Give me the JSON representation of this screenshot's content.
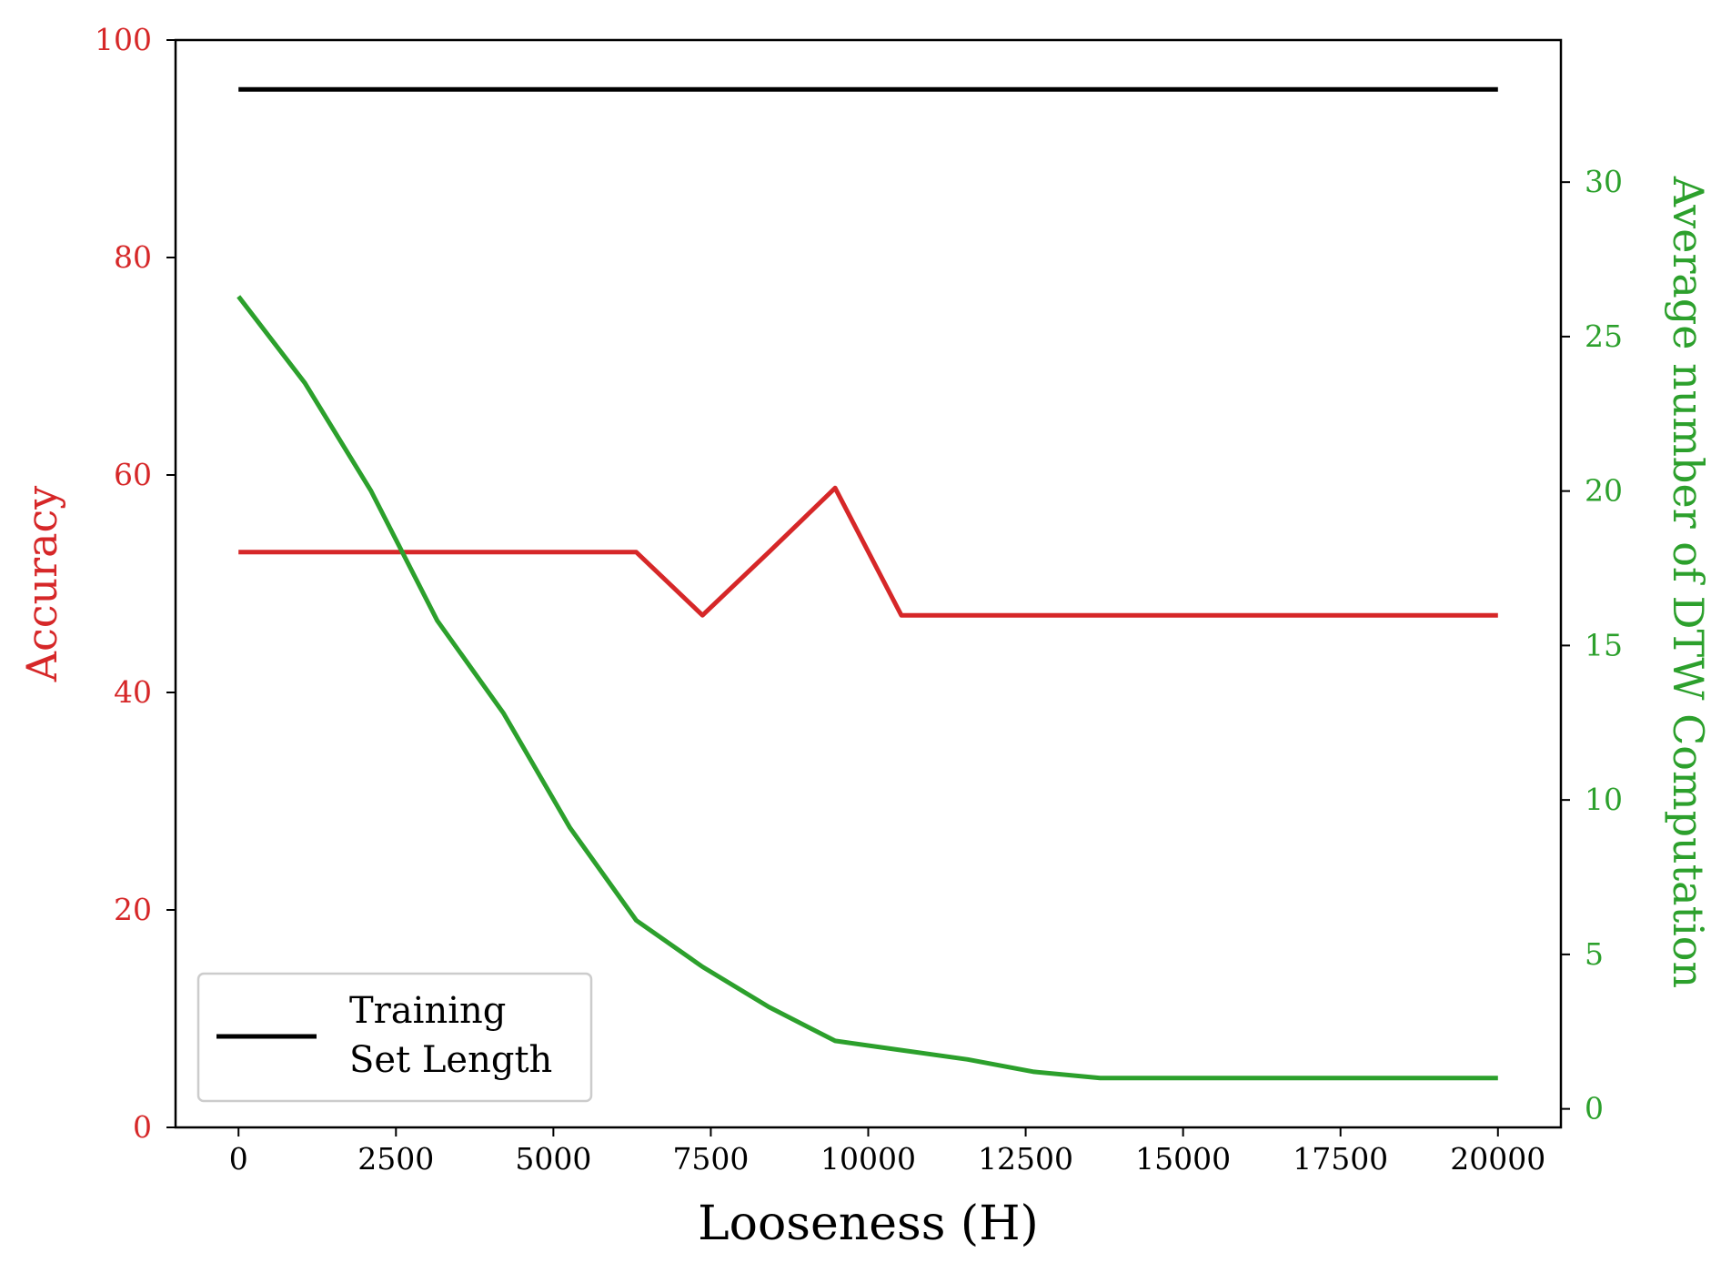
{
  "chart_data": {
    "type": "line",
    "xlabel": "Looseness (H)",
    "x_ticks": [
      "0",
      "2500",
      "5000",
      "7500",
      "10000",
      "12500",
      "15000",
      "17500",
      "20000"
    ],
    "xlim": [
      -1000,
      21000
    ],
    "left_axis": {
      "label": "Accuracy",
      "color": "#d62728",
      "ylim": [
        0,
        100
      ],
      "ticks": [
        "0",
        "20",
        "40",
        "60",
        "80",
        "100"
      ]
    },
    "right_axis": {
      "label": "Average number of DTW Computation",
      "color": "#2ca02c",
      "ylim": [
        -0.6,
        34.6
      ],
      "ticks": [
        "0",
        "5",
        "10",
        "15",
        "20",
        "25",
        "30"
      ]
    },
    "series": [
      {
        "name": "Training Set Length",
        "axis": "right",
        "color": "#000000",
        "x": [
          0,
          20000
        ],
        "y": [
          33,
          33
        ]
      },
      {
        "axis": "left",
        "color": "#d62728",
        "x": [
          0,
          1053,
          2105,
          3158,
          4211,
          5263,
          6316,
          7368,
          8421,
          9474,
          10526,
          11579,
          12632,
          13684,
          14737,
          15789,
          16842,
          17895,
          18947,
          20000
        ],
        "y": [
          52.9,
          52.9,
          52.9,
          52.9,
          52.9,
          52.9,
          52.9,
          47.1,
          52.9,
          58.8,
          47.1,
          47.1,
          47.1,
          47.1,
          47.1,
          47.1,
          47.1,
          47.1,
          47.1,
          47.1
        ]
      },
      {
        "axis": "right",
        "color": "#2ca02c",
        "x": [
          0,
          1053,
          2105,
          3158,
          4211,
          5263,
          6316,
          7368,
          8421,
          9474,
          10526,
          11579,
          12632,
          13684,
          14737,
          15789,
          16842,
          17895,
          18947,
          20000
        ],
        "y": [
          26.3,
          23.5,
          20.0,
          15.8,
          12.8,
          9.1,
          6.1,
          4.6,
          3.3,
          2.2,
          1.9,
          1.6,
          1.2,
          1.0,
          1.0,
          1.0,
          1.0,
          1.0,
          1.0,
          1.0
        ]
      }
    ],
    "legend": {
      "position": "lower-left",
      "lines": [
        "Training",
        "Set Length"
      ]
    }
  }
}
